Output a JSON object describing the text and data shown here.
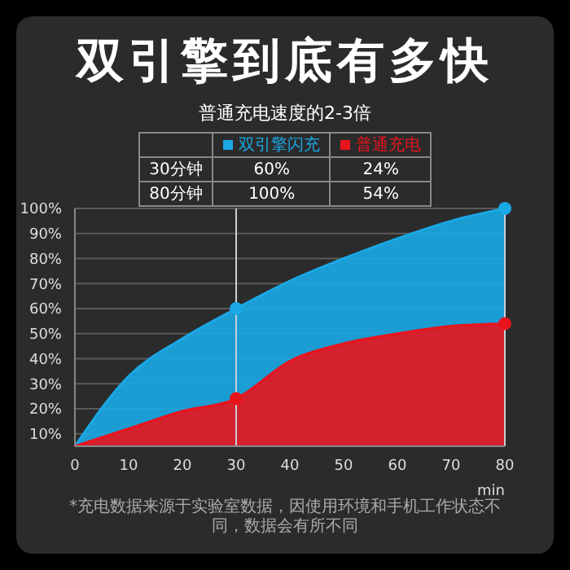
{
  "chart_data": {
    "type": "area",
    "title": "双引擎到底有多快",
    "subtitle": "普通充电速度的2-3倍",
    "xlabel": "min",
    "x": [
      0,
      10,
      20,
      30,
      40,
      50,
      60,
      70,
      80
    ],
    "series": [
      {
        "name": "双引擎闪充",
        "color": "#1aa8e6",
        "values": [
          5,
          33,
          48,
          60,
          71,
          80,
          88,
          95,
          100
        ]
      },
      {
        "name": "普通充电",
        "color": "#e8141c",
        "values": [
          5,
          12,
          19,
          24,
          39,
          46,
          50,
          53,
          54
        ]
      },
      {
        "type": "scatter",
        "color": "#1aa8e6",
        "values": [
          null,
          null,
          null,
          60,
          null,
          null,
          null,
          null,
          100
        ]
      },
      {
        "type": "scatter",
        "color": "#e8141c",
        "values": [
          null,
          null,
          null,
          24,
          null,
          null,
          null,
          null,
          54
        ]
      }
    ],
    "xlim": [
      0,
      80
    ],
    "xticks": [
      0,
      10,
      20,
      30,
      40,
      50,
      60,
      70,
      80
    ],
    "ylim": [
      5,
      100
    ],
    "yticks": [
      {
        "value": 10,
        "label": "10%"
      },
      {
        "value": 20,
        "label": "20%"
      },
      {
        "value": 30,
        "label": "30%"
      },
      {
        "value": 40,
        "label": "40%"
      },
      {
        "value": 50,
        "label": "50%"
      },
      {
        "value": 60,
        "label": "60%"
      },
      {
        "value": 70,
        "label": "70%"
      },
      {
        "value": 80,
        "label": "80%"
      },
      {
        "value": 90,
        "label": "90%"
      },
      {
        "value": 100,
        "label": "100%"
      }
    ],
    "grid": "y",
    "legend": "top",
    "ref_lines": [
      {
        "axis": "x",
        "value": 30,
        "color": "#c8d0d8"
      },
      {
        "axis": "x",
        "value": 80,
        "color": "#c8d0d8"
      }
    ],
    "annotations": [
      "30分钟",
      "60%",
      "24%",
      "80分钟",
      "100%",
      "54%",
      "*充电数据来源于实验室数据，因使用环境和手机工作状态不同，数据会有所不同"
    ]
  }
}
